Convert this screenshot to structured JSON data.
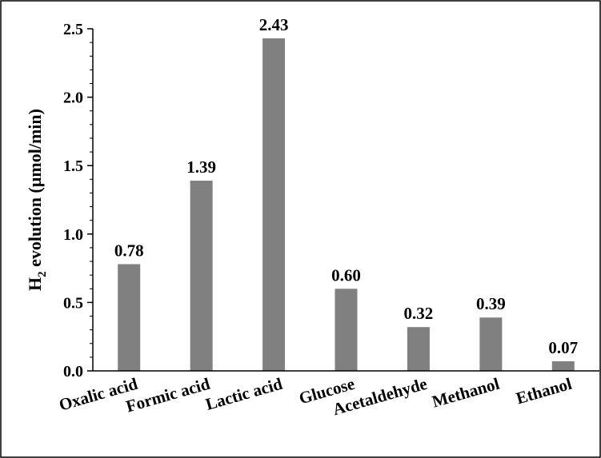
{
  "chart_data": {
    "type": "bar",
    "title": "",
    "xlabel": "",
    "ylabel": {
      "main": "H",
      "subscript": "2",
      "rest": " evolution (µmol/min)"
    },
    "categories": [
      "Oxalic acid",
      "Formic acid",
      "Lactic acid",
      "Glucose",
      "Acetaldehyde",
      "Methanol",
      "Ethanol"
    ],
    "values": [
      0.78,
      1.39,
      2.43,
      0.6,
      0.32,
      0.39,
      0.07
    ],
    "value_labels": [
      "0.78",
      "1.39",
      "2.43",
      "0.60",
      "0.32",
      "0.39",
      "0.07"
    ],
    "ylim": [
      0,
      2.5
    ],
    "yticks": [
      0.0,
      0.5,
      1.0,
      1.5,
      2.0,
      2.5
    ],
    "ytick_labels": [
      "0.0",
      "0.5",
      "1.0",
      "1.5",
      "2.0",
      "2.5"
    ],
    "grid": false,
    "bar_color": "#808080"
  }
}
